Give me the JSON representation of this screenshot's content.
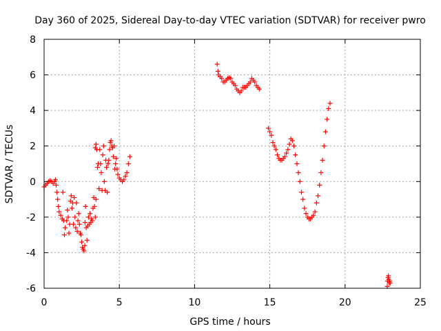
{
  "chart_data": {
    "type": "scatter",
    "title": "Day 360 of 2025, Sidereal Day-to-day VTEC variation (SDTVAR) for receiver pwro",
    "xlabel": "GPS time / hours",
    "ylabel": "SDTVAR / TECUs",
    "xlim": [
      0,
      25
    ],
    "ylim": [
      -6,
      8
    ],
    "xticks": [
      0,
      5,
      10,
      15,
      20,
      25
    ],
    "yticks": [
      -6,
      -4,
      -2,
      0,
      2,
      4,
      6,
      8
    ],
    "grid": true,
    "marker": "plus",
    "color": "#ff0000",
    "series": [
      {
        "points": [
          [
            0.0,
            -0.3
          ],
          [
            0.1,
            -0.2
          ],
          [
            0.2,
            -0.1
          ],
          [
            0.3,
            0.0
          ],
          [
            0.4,
            0.05
          ],
          [
            0.5,
            0.0
          ],
          [
            0.6,
            -0.1
          ],
          [
            0.7,
            0.0
          ],
          [
            0.75,
            0.1
          ],
          [
            0.8,
            -0.2
          ],
          [
            0.85,
            -0.6
          ],
          [
            0.9,
            -1.0
          ],
          [
            0.95,
            -1.4
          ],
          [
            1.0,
            -1.7
          ],
          [
            1.1,
            -1.9
          ],
          [
            1.2,
            -2.1
          ],
          [
            1.25,
            -0.6
          ],
          [
            1.3,
            -2.2
          ],
          [
            1.35,
            -3.0
          ],
          [
            1.4,
            -2.6
          ],
          [
            1.5,
            -2.2
          ],
          [
            1.55,
            -1.6
          ],
          [
            1.6,
            -2.0
          ],
          [
            1.65,
            -2.9
          ],
          [
            1.7,
            -2.4
          ],
          [
            1.75,
            -1.1
          ],
          [
            1.8,
            -0.8
          ],
          [
            1.85,
            -1.5
          ],
          [
            1.9,
            -1.2
          ],
          [
            1.95,
            -2.4
          ],
          [
            2.0,
            -0.9
          ],
          [
            2.05,
            -2.0
          ],
          [
            2.1,
            -2.6
          ],
          [
            2.15,
            -1.2
          ],
          [
            2.2,
            -2.8
          ],
          [
            2.25,
            -2.2
          ],
          [
            2.3,
            -1.8
          ],
          [
            2.35,
            -2.4
          ],
          [
            2.4,
            -2.9
          ],
          [
            2.45,
            -3.0
          ],
          [
            2.5,
            -3.4
          ],
          [
            2.55,
            -3.7
          ],
          [
            2.6,
            -3.8
          ],
          [
            2.65,
            -3.9
          ],
          [
            2.7,
            -3.6
          ],
          [
            2.72,
            -2.3
          ],
          [
            2.75,
            -1.4
          ],
          [
            2.8,
            -2.6
          ],
          [
            2.85,
            -3.3
          ],
          [
            2.9,
            -2.5
          ],
          [
            2.95,
            -2.0
          ],
          [
            3.0,
            -2.4
          ],
          [
            3.05,
            -1.8
          ],
          [
            3.1,
            -2.3
          ],
          [
            3.15,
            -2.1
          ],
          [
            3.2,
            -2.2
          ],
          [
            3.25,
            -1.5
          ],
          [
            3.3,
            -0.9
          ],
          [
            3.35,
            -1.4
          ],
          [
            3.4,
            -2.0
          ],
          [
            3.45,
            -1.0
          ],
          [
            3.4,
            1.9
          ],
          [
            3.45,
            2.1
          ],
          [
            3.5,
            1.8
          ],
          [
            3.55,
            0.8
          ],
          [
            3.6,
            1.0
          ],
          [
            3.65,
            -0.4
          ],
          [
            3.7,
            1.8
          ],
          [
            3.75,
            1.0
          ],
          [
            3.8,
            0.5
          ],
          [
            3.85,
            -0.5
          ],
          [
            3.9,
            1.5
          ],
          [
            3.95,
            2.0
          ],
          [
            4.0,
            0.0
          ],
          [
            4.05,
            -0.5
          ],
          [
            4.1,
            1.2
          ],
          [
            4.15,
            0.8
          ],
          [
            4.2,
            -0.6
          ],
          [
            4.25,
            1.0
          ],
          [
            4.3,
            1.2
          ],
          [
            4.35,
            1.8
          ],
          [
            4.4,
            2.2
          ],
          [
            4.45,
            2.3
          ],
          [
            4.5,
            2.0
          ],
          [
            4.55,
            1.9
          ],
          [
            4.6,
            1.4
          ],
          [
            4.65,
            2.0
          ],
          [
            4.7,
            0.7
          ],
          [
            4.75,
            1.0
          ],
          [
            4.8,
            1.3
          ],
          [
            4.85,
            0.7
          ],
          [
            4.9,
            0.4
          ],
          [
            5.0,
            0.2
          ],
          [
            5.1,
            0.1
          ],
          [
            5.2,
            0.0
          ],
          [
            5.3,
            0.1
          ],
          [
            5.4,
            0.3
          ],
          [
            5.5,
            0.5
          ],
          [
            5.6,
            1.0
          ],
          [
            5.7,
            1.4
          ],
          [
            11.5,
            6.6
          ],
          [
            11.55,
            6.2
          ],
          [
            11.6,
            6.0
          ],
          [
            11.7,
            5.9
          ],
          [
            11.8,
            5.8
          ],
          [
            11.9,
            5.6
          ],
          [
            12.0,
            5.6
          ],
          [
            12.1,
            5.7
          ],
          [
            12.2,
            5.8
          ],
          [
            12.3,
            5.85
          ],
          [
            12.4,
            5.8
          ],
          [
            12.5,
            5.6
          ],
          [
            12.6,
            5.5
          ],
          [
            12.7,
            5.4
          ],
          [
            12.8,
            5.2
          ],
          [
            12.9,
            5.1
          ],
          [
            13.0,
            5.0
          ],
          [
            13.1,
            5.1
          ],
          [
            13.2,
            5.3
          ],
          [
            13.3,
            5.3
          ],
          [
            13.4,
            5.3
          ],
          [
            13.5,
            5.4
          ],
          [
            13.6,
            5.5
          ],
          [
            13.7,
            5.6
          ],
          [
            13.8,
            5.8
          ],
          [
            13.9,
            5.7
          ],
          [
            14.0,
            5.6
          ],
          [
            14.1,
            5.4
          ],
          [
            14.2,
            5.3
          ],
          [
            14.3,
            5.2
          ],
          [
            14.9,
            3.0
          ],
          [
            15.0,
            2.8
          ],
          [
            15.1,
            2.6
          ],
          [
            15.2,
            2.2
          ],
          [
            15.3,
            2.0
          ],
          [
            15.4,
            1.8
          ],
          [
            15.5,
            1.5
          ],
          [
            15.6,
            1.3
          ],
          [
            15.7,
            1.2
          ],
          [
            15.8,
            1.2
          ],
          [
            15.9,
            1.3
          ],
          [
            16.0,
            1.4
          ],
          [
            16.1,
            1.6
          ],
          [
            16.2,
            1.8
          ],
          [
            16.3,
            2.1
          ],
          [
            16.4,
            2.4
          ],
          [
            16.5,
            2.3
          ],
          [
            16.6,
            2.0
          ],
          [
            16.7,
            1.5
          ],
          [
            16.8,
            1.0
          ],
          [
            16.9,
            0.5
          ],
          [
            17.0,
            0.0
          ],
          [
            17.1,
            -0.6
          ],
          [
            17.2,
            -1.0
          ],
          [
            17.3,
            -1.5
          ],
          [
            17.4,
            -1.8
          ],
          [
            17.5,
            -2.0
          ],
          [
            17.6,
            -2.1
          ],
          [
            17.7,
            -2.1
          ],
          [
            17.8,
            -2.0
          ],
          [
            17.9,
            -1.9
          ],
          [
            18.0,
            -1.7
          ],
          [
            18.1,
            -1.2
          ],
          [
            18.2,
            -0.8
          ],
          [
            18.3,
            -0.2
          ],
          [
            18.4,
            0.5
          ],
          [
            18.5,
            1.2
          ],
          [
            18.6,
            2.0
          ],
          [
            18.7,
            2.8
          ],
          [
            18.8,
            3.5
          ],
          [
            18.9,
            4.1
          ],
          [
            19.0,
            4.4
          ],
          [
            22.8,
            -5.9
          ],
          [
            22.82,
            -5.6
          ],
          [
            22.85,
            -5.4
          ],
          [
            22.88,
            -5.3
          ],
          [
            22.9,
            -5.5
          ],
          [
            22.93,
            -5.7
          ],
          [
            22.96,
            -5.6
          ],
          [
            23.0,
            -5.7
          ]
        ]
      }
    ]
  }
}
